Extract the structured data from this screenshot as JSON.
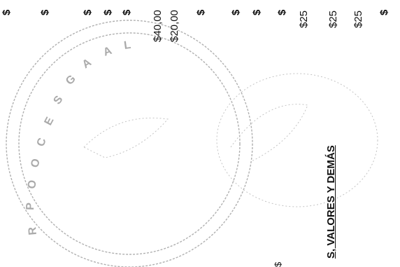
{
  "top_row_dollar_signs": [
    "$",
    "$",
    "$",
    "$",
    "$",
    "$",
    "$",
    "$",
    "$"
  ],
  "amounts_40": "$40,00",
  "amounts_20": "$20,00",
  "amounts_25": [
    "$25",
    "$25",
    "$25"
  ],
  "right_dollar": "$",
  "section_heading": "S, VALORES Y DEMÁS",
  "lower_mark": "$",
  "seal": {
    "colors": {
      "ink": "#9a9a9a",
      "text": "#111111"
    }
  }
}
